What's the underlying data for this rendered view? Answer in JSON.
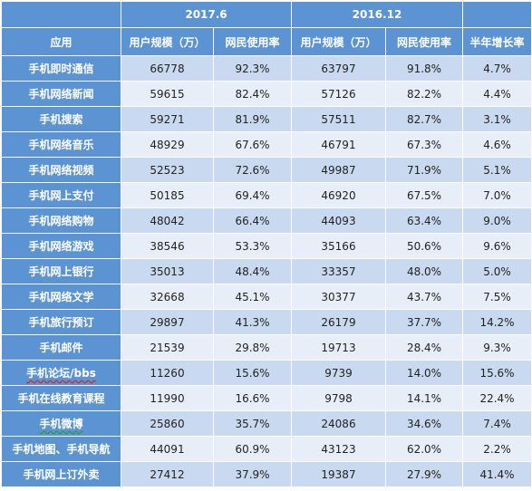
{
  "table": {
    "period_headers": [
      "2017.6",
      "2016.12"
    ],
    "column_headers": [
      "应用",
      "用户规模（万）",
      "网民使用率",
      "用户规模（万）",
      "网民使用率",
      "半年增长率"
    ],
    "rows": [
      [
        "手机即时通信",
        "66778",
        "92.3%",
        "63797",
        "91.8%",
        "4.7%"
      ],
      [
        "手机网络新闻",
        "59615",
        "82.4%",
        "57126",
        "82.2%",
        "4.4%"
      ],
      [
        "手机搜索",
        "59271",
        "81.9%",
        "57511",
        "82.7%",
        "3.1%"
      ],
      [
        "手机网络音乐",
        "48929",
        "67.6%",
        "46791",
        "67.3%",
        "4.6%"
      ],
      [
        "手机网络视频",
        "52523",
        "72.6%",
        "49987",
        "71.9%",
        "5.1%"
      ],
      [
        "手机网上支付",
        "50185",
        "69.4%",
        "46920",
        "67.5%",
        "7.0%"
      ],
      [
        "手机网络购物",
        "48042",
        "66.4%",
        "44093",
        "63.4%",
        "9.0%"
      ],
      [
        "手机网络游戏",
        "38546",
        "53.3%",
        "35166",
        "50.6%",
        "9.6%"
      ],
      [
        "手机网上银行",
        "35013",
        "48.4%",
        "33357",
        "48.0%",
        "5.0%"
      ],
      [
        "手机网络文学",
        "32668",
        "45.1%",
        "30377",
        "43.7%",
        "7.5%"
      ],
      [
        "手机旅行预订",
        "29897",
        "41.3%",
        "26179",
        "37.7%",
        "14.2%"
      ],
      [
        "手机邮件",
        "21539",
        "29.8%",
        "19713",
        "28.4%",
        "9.3%"
      ],
      [
        "手机论坛/bbs",
        "11260",
        "15.6%",
        "9739",
        "14.0%",
        "15.6%"
      ],
      [
        "手机在线教育课程",
        "11990",
        "16.6%",
        "9798",
        "14.1%",
        "22.4%"
      ],
      [
        "手机微博",
        "25860",
        "35.7%",
        "24086",
        "34.6%",
        "7.4%"
      ],
      [
        "手机地图、手机导航",
        "44091",
        "60.9%",
        "43123",
        "62.0%",
        "2.2%"
      ],
      [
        "手机网上订外卖",
        "27412",
        "37.9%",
        "19387",
        "27.9%",
        "41.4%"
      ]
    ]
  },
  "colors": {
    "header_blue": "#5b93d3",
    "row_odd": "#c9d9ef",
    "row_even": "#e8eef7"
  }
}
